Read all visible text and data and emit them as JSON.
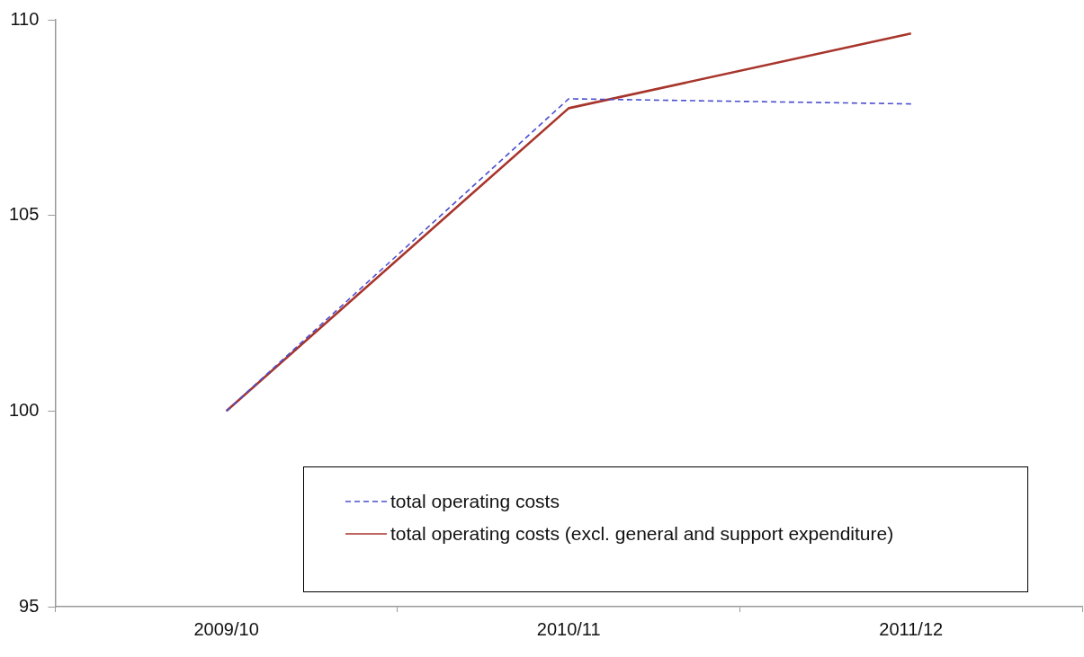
{
  "chart_data": {
    "type": "line",
    "categories": [
      "2009/10",
      "2010/11",
      "2011/12"
    ],
    "series": [
      {
        "name": "total operating costs",
        "color": "#4b4fd0",
        "line_style": "dashed",
        "values": [
          100,
          107.98,
          107.85
        ]
      },
      {
        "name": "total operating costs (excl. general and support expenditure)",
        "color": "#a8352c",
        "line_style": "solid",
        "values": [
          100,
          107.74,
          109.65
        ]
      }
    ],
    "ylim": [
      95,
      110
    ],
    "yticks": [
      95,
      100,
      105,
      110
    ],
    "grid": false,
    "legend": "bottom",
    "marker": "none"
  }
}
